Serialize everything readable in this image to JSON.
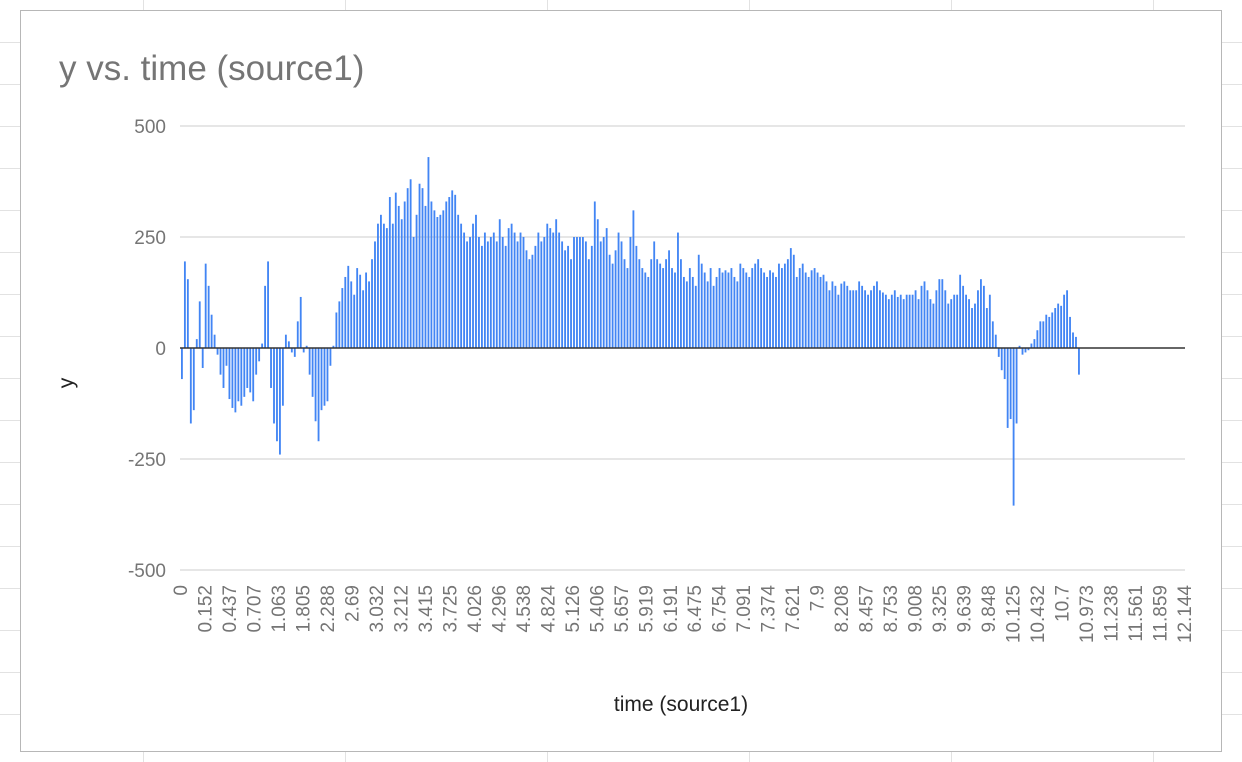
{
  "chart_data": {
    "type": "bar",
    "title": "y vs. time (source1)",
    "xlabel": "time (source1)",
    "ylabel": "y",
    "ylim": [
      -500,
      500
    ],
    "yticks": [
      "500",
      "250",
      "0",
      "-250",
      "-500"
    ],
    "xtick_labels": [
      "0",
      "0.152",
      "0.437",
      "0.707",
      "1.063",
      "1.805",
      "2.288",
      "2.69",
      "3.032",
      "3.212",
      "3.415",
      "3.725",
      "4.026",
      "4.296",
      "4.538",
      "4.824",
      "5.126",
      "5.406",
      "5.657",
      "5.919",
      "6.191",
      "6.475",
      "6.754",
      "7.091",
      "7.374",
      "7.621",
      "7.9",
      "8.208",
      "8.457",
      "8.753",
      "9.008",
      "9.325",
      "9.639",
      "9.848",
      "10.125",
      "10.432",
      "10.7",
      "10.973",
      "11.238",
      "11.561",
      "11.859",
      "12.144"
    ],
    "grid": true,
    "legend": "none",
    "bar_color": "#4285f4",
    "values": [
      -70,
      195,
      155,
      -170,
      -140,
      20,
      105,
      -45,
      190,
      140,
      75,
      30,
      -15,
      -60,
      -90,
      -40,
      -115,
      -135,
      -145,
      -120,
      -130,
      -110,
      -90,
      -100,
      -120,
      -60,
      -30,
      10,
      140,
      195,
      -90,
      -170,
      -210,
      -240,
      -130,
      30,
      15,
      -10,
      -20,
      60,
      115,
      -10,
      5,
      -60,
      -110,
      -165,
      -210,
      -140,
      -130,
      -120,
      -40,
      5,
      80,
      105,
      135,
      160,
      185,
      150,
      120,
      180,
      165,
      130,
      170,
      150,
      200,
      240,
      280,
      300,
      280,
      270,
      340,
      280,
      350,
      320,
      290,
      330,
      360,
      380,
      250,
      300,
      370,
      360,
      320,
      430,
      330,
      310,
      295,
      300,
      310,
      330,
      340,
      355,
      345,
      300,
      280,
      260,
      240,
      250,
      280,
      300,
      250,
      230,
      260,
      240,
      250,
      260,
      240,
      290,
      250,
      230,
      270,
      280,
      260,
      240,
      260,
      250,
      220,
      200,
      210,
      230,
      260,
      240,
      250,
      280,
      270,
      260,
      290,
      260,
      240,
      220,
      230,
      200,
      250,
      250,
      250,
      250,
      240,
      200,
      230,
      330,
      290,
      240,
      250,
      270,
      210,
      190,
      220,
      260,
      240,
      200,
      180,
      250,
      310,
      230,
      200,
      180,
      170,
      160,
      200,
      240,
      200,
      190,
      180,
      200,
      220,
      180,
      170,
      260,
      200,
      160,
      150,
      180,
      160,
      140,
      210,
      190,
      170,
      150,
      180,
      140,
      160,
      180,
      170,
      175,
      170,
      180,
      160,
      150,
      190,
      180,
      170,
      160,
      180,
      190,
      200,
      180,
      170,
      160,
      175,
      170,
      160,
      190,
      180,
      190,
      200,
      225,
      210,
      160,
      180,
      190,
      170,
      160,
      175,
      180,
      170,
      160,
      165,
      150,
      130,
      150,
      140,
      120,
      145,
      150,
      140,
      130,
      130,
      130,
      150,
      140,
      130,
      120,
      130,
      140,
      150,
      130,
      125,
      120,
      110,
      120,
      130,
      115,
      120,
      110,
      120,
      120,
      120,
      130,
      110,
      140,
      150,
      130,
      110,
      100,
      130,
      155,
      155,
      130,
      100,
      110,
      120,
      120,
      165,
      140,
      120,
      110,
      90,
      100,
      130,
      155,
      140,
      90,
      120,
      60,
      30,
      -20,
      -50,
      -70,
      -180,
      -160,
      -355,
      -170,
      5,
      -15,
      -10,
      -5,
      10,
      20,
      40,
      60,
      60,
      75,
      70,
      80,
      90,
      100,
      95,
      120,
      130,
      70,
      35,
      25,
      -60
    ]
  }
}
